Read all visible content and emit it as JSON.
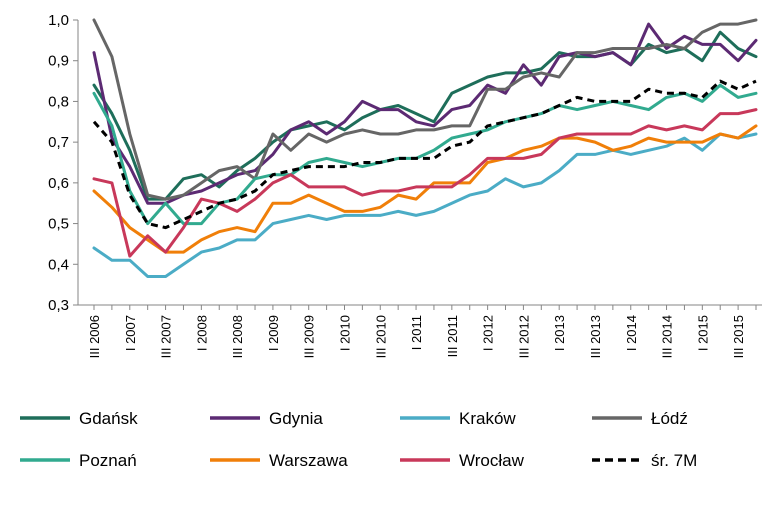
{
  "chart_data": {
    "type": "line",
    "title": "",
    "xlabel": "",
    "ylabel": "",
    "ylim": [
      0.3,
      1.0
    ],
    "yticks": [
      "0,3",
      "0,4",
      "0,5",
      "0,6",
      "0,7",
      "0,8",
      "0,9",
      "1,0"
    ],
    "x_tick_labels": [
      "III 2006",
      "I 2007",
      "III 2007",
      "I 2008",
      "III 2008",
      "I 2009",
      "III 2009",
      "I 2010",
      "III 2010",
      "I 2011",
      "III 2011",
      "I 2012",
      "III 2012",
      "I 2013",
      "III 2013",
      "I 2014",
      "III 2014",
      "I 2015",
      "III 2015"
    ],
    "x": [
      "III 2006",
      "IV 2006",
      "I 2007",
      "II 2007",
      "III 2007",
      "IV 2007",
      "I 2008",
      "II 2008",
      "III 2008",
      "IV 2008",
      "I 2009",
      "II 2009",
      "III 2009",
      "IV 2009",
      "I 2010",
      "II 2010",
      "III 2010",
      "IV 2010",
      "I 2011",
      "II 2011",
      "III 2011",
      "IV 2011",
      "I 2012",
      "II 2012",
      "III 2012",
      "IV 2012",
      "I 2013",
      "II 2013",
      "III 2013",
      "IV 2013",
      "I 2014",
      "II 2014",
      "III 2014",
      "IV 2014",
      "I 2015",
      "II 2015",
      "III 2015",
      "IV 2015"
    ],
    "grid": false,
    "legend_position": "bottom",
    "series": [
      {
        "name": "Gdańsk",
        "color": "#1e6e5a",
        "dash": false,
        "values": [
          0.84,
          0.77,
          0.68,
          0.56,
          0.56,
          0.61,
          0.62,
          0.59,
          0.63,
          0.66,
          0.7,
          0.73,
          0.74,
          0.75,
          0.73,
          0.76,
          0.78,
          0.79,
          0.77,
          0.75,
          0.82,
          0.84,
          0.86,
          0.87,
          0.87,
          0.88,
          0.92,
          0.91,
          0.91,
          0.92,
          0.89,
          0.94,
          0.92,
          0.93,
          0.9,
          0.97,
          0.93,
          0.91
        ]
      },
      {
        "name": "Gdynia",
        "color": "#5c2a73",
        "dash": false,
        "values": [
          0.92,
          0.71,
          0.64,
          0.55,
          0.55,
          0.57,
          0.58,
          0.6,
          0.62,
          0.63,
          0.67,
          0.73,
          0.75,
          0.72,
          0.75,
          0.8,
          0.78,
          0.78,
          0.75,
          0.74,
          0.78,
          0.79,
          0.84,
          0.82,
          0.89,
          0.84,
          0.91,
          0.92,
          0.91,
          0.92,
          0.89,
          0.99,
          0.93,
          0.96,
          0.94,
          0.94,
          0.9,
          0.95
        ]
      },
      {
        "name": "Kraków",
        "color": "#4bacc6",
        "dash": false,
        "values": [
          0.44,
          0.41,
          0.41,
          0.37,
          0.37,
          0.4,
          0.43,
          0.44,
          0.46,
          0.46,
          0.5,
          0.51,
          0.52,
          0.51,
          0.52,
          0.52,
          0.52,
          0.53,
          0.52,
          0.53,
          0.55,
          0.57,
          0.58,
          0.61,
          0.59,
          0.6,
          0.63,
          0.67,
          0.67,
          0.68,
          0.67,
          0.68,
          0.69,
          0.71,
          0.68,
          0.72,
          0.71,
          0.72
        ]
      },
      {
        "name": "Łódź",
        "color": "#666666",
        "dash": false,
        "values": [
          1.0,
          0.91,
          0.72,
          0.57,
          0.56,
          0.57,
          0.6,
          0.63,
          0.64,
          0.61,
          0.72,
          0.68,
          0.72,
          0.7,
          0.72,
          0.73,
          0.72,
          0.72,
          0.73,
          0.73,
          0.74,
          0.74,
          0.83,
          0.83,
          0.86,
          0.87,
          0.86,
          0.92,
          0.92,
          0.93,
          0.93,
          0.93,
          0.94,
          0.93,
          0.97,
          0.99,
          0.99,
          1.0
        ]
      },
      {
        "name": "Poznań",
        "color": "#31aa8f",
        "dash": false,
        "values": [
          0.82,
          0.74,
          0.58,
          0.5,
          0.55,
          0.5,
          0.5,
          0.55,
          0.56,
          0.61,
          0.62,
          0.62,
          0.65,
          0.66,
          0.65,
          0.64,
          0.65,
          0.66,
          0.66,
          0.68,
          0.71,
          0.72,
          0.73,
          0.75,
          0.76,
          0.77,
          0.79,
          0.78,
          0.79,
          0.8,
          0.79,
          0.78,
          0.81,
          0.82,
          0.8,
          0.84,
          0.81,
          0.82
        ]
      },
      {
        "name": "Warszawa",
        "color": "#f07f09",
        "dash": false,
        "values": [
          0.58,
          0.54,
          0.49,
          0.46,
          0.43,
          0.43,
          0.46,
          0.48,
          0.49,
          0.48,
          0.55,
          0.55,
          0.57,
          0.55,
          0.53,
          0.53,
          0.54,
          0.57,
          0.56,
          0.6,
          0.6,
          0.6,
          0.65,
          0.66,
          0.68,
          0.69,
          0.71,
          0.71,
          0.7,
          0.68,
          0.69,
          0.71,
          0.7,
          0.7,
          0.7,
          0.72,
          0.71,
          0.74
        ]
      },
      {
        "name": "Wrocław",
        "color": "#c8385a",
        "dash": false,
        "values": [
          0.61,
          0.6,
          0.42,
          0.47,
          0.43,
          0.49,
          0.56,
          0.55,
          0.53,
          0.56,
          0.6,
          0.62,
          0.59,
          0.59,
          0.59,
          0.57,
          0.58,
          0.58,
          0.59,
          0.59,
          0.59,
          0.62,
          0.66,
          0.66,
          0.66,
          0.67,
          0.71,
          0.72,
          0.72,
          0.72,
          0.72,
          0.74,
          0.73,
          0.74,
          0.73,
          0.77,
          0.77,
          0.78
        ]
      },
      {
        "name": "śr. 7M",
        "color": "#000000",
        "dash": true,
        "values": [
          0.75,
          0.7,
          0.57,
          0.5,
          0.49,
          0.51,
          0.53,
          0.55,
          0.56,
          0.58,
          0.62,
          0.63,
          0.64,
          0.64,
          0.64,
          0.65,
          0.65,
          0.66,
          0.66,
          0.66,
          0.69,
          0.7,
          0.74,
          0.75,
          0.76,
          0.77,
          0.79,
          0.81,
          0.8,
          0.8,
          0.8,
          0.83,
          0.82,
          0.82,
          0.81,
          0.85,
          0.83,
          0.85
        ]
      }
    ]
  }
}
